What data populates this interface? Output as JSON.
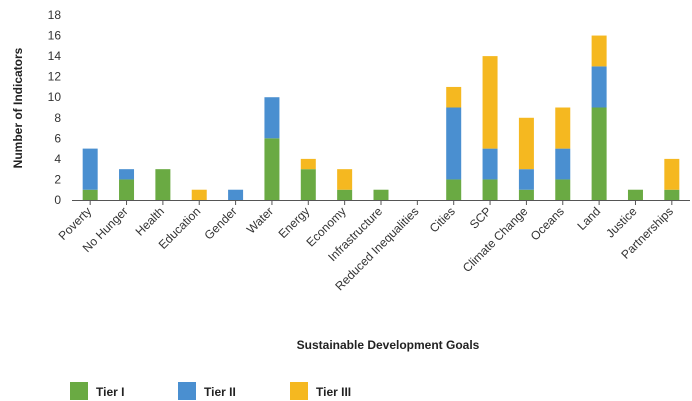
{
  "chart_data": {
    "type": "bar",
    "stacked": true,
    "title": "",
    "xlabel": "Sustainable Development Goals",
    "ylabel": "Number of Indicators",
    "ylim": [
      0,
      18
    ],
    "yticks": [
      0,
      2,
      4,
      6,
      8,
      10,
      12,
      14,
      16,
      18
    ],
    "grid": false,
    "legend_position": "bottom-left",
    "categories": [
      "Poverty",
      "No Hunger",
      "Health",
      "Education",
      "Gender",
      "Water",
      "Energy",
      "Economy",
      "Infrastructure",
      "Reduced Inequalities",
      "Cities",
      "SCP",
      "Climate Change",
      "Oceans",
      "Land",
      "Justice",
      "Partnerships"
    ],
    "series": [
      {
        "name": "Tier I",
        "color": "#6aaa43",
        "values": [
          1,
          2,
          3,
          0,
          0,
          6,
          3,
          1,
          1,
          0,
          2,
          2,
          1,
          2,
          9,
          1,
          1
        ]
      },
      {
        "name": "Tier II",
        "color": "#4a8fd0",
        "values": [
          4,
          1,
          0,
          0,
          1,
          4,
          0,
          0,
          0,
          0,
          7,
          3,
          2,
          3,
          4,
          0,
          0
        ]
      },
      {
        "name": "Tier III",
        "color": "#f5b820",
        "values": [
          0,
          0,
          0,
          1,
          0,
          0,
          1,
          2,
          0,
          0,
          2,
          9,
          5,
          4,
          3,
          0,
          3
        ]
      }
    ]
  }
}
